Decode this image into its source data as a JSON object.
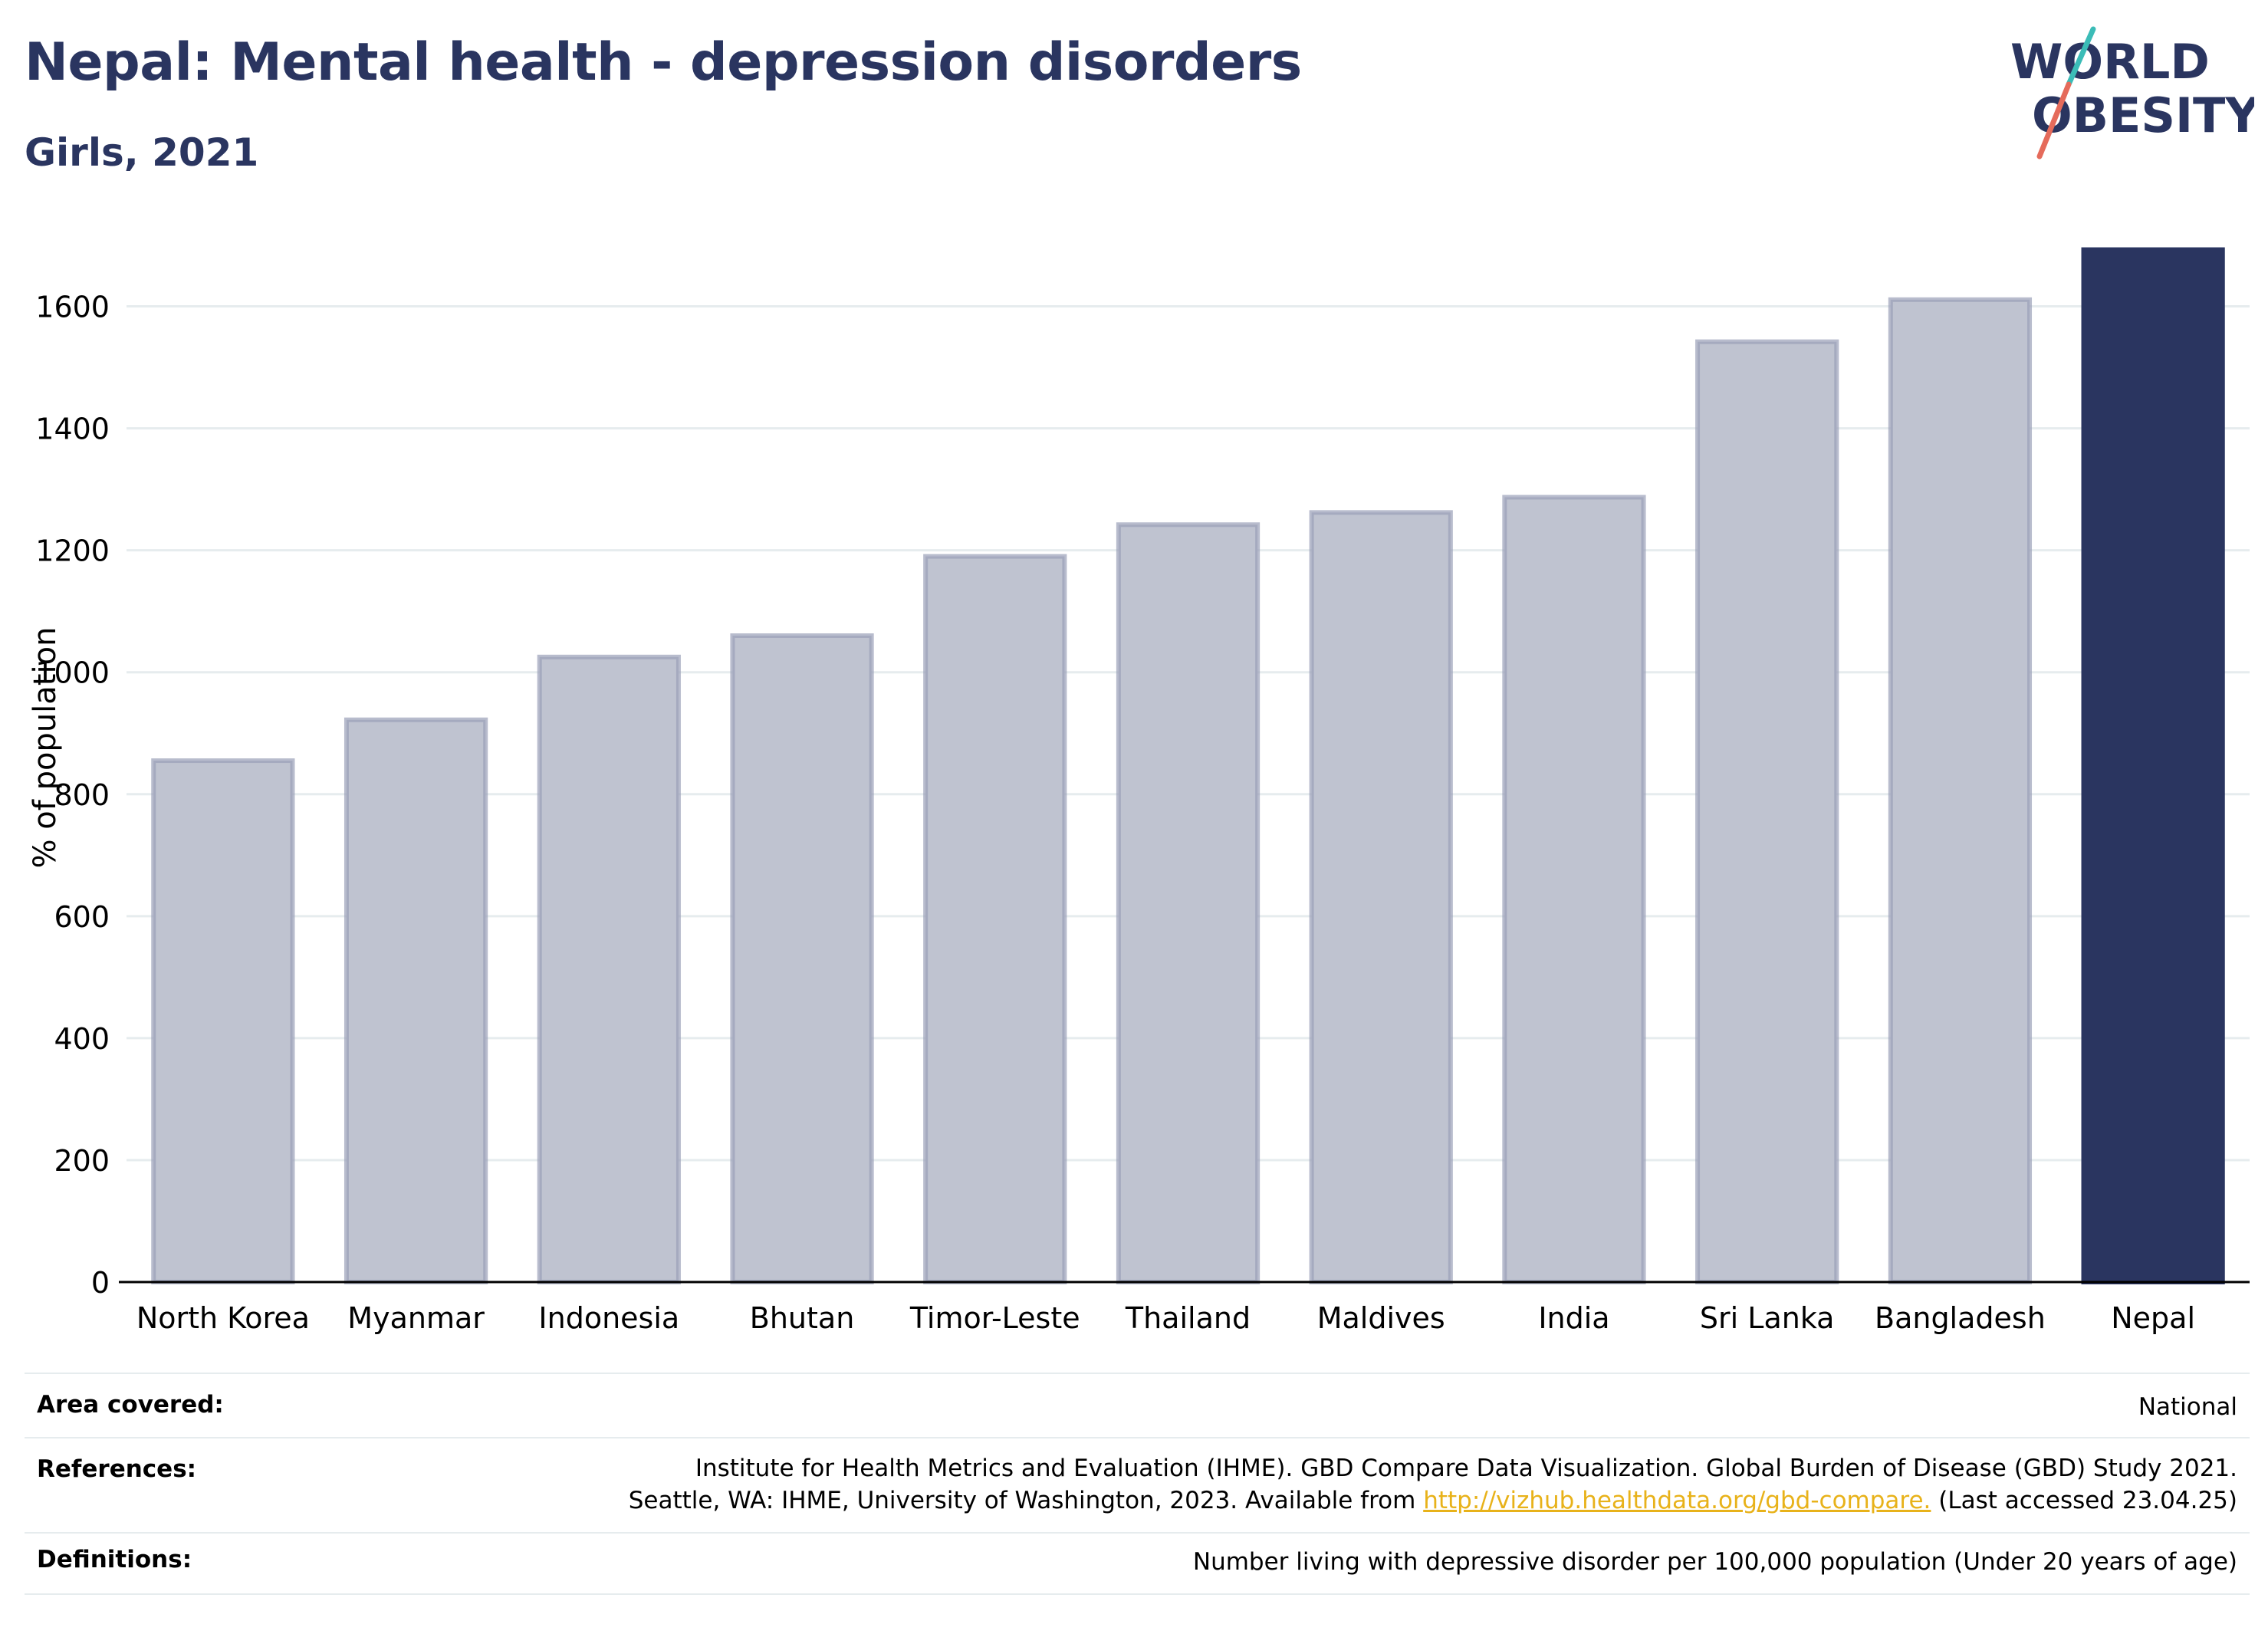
{
  "header": {
    "title": "Nepal: Mental health - depression disorders",
    "subtitle": "Girls, 2021"
  },
  "logo": {
    "line1": "WORLD",
    "line2": "OBESITY",
    "colors": {
      "text": "#2a3560",
      "slash_top": "#3bbcb7",
      "slash_bottom": "#e56b5b"
    }
  },
  "chart_data": {
    "type": "bar",
    "categories": [
      "North Korea",
      "Myanmar",
      "Indonesia",
      "Bhutan",
      "Timor-Leste",
      "Thailand",
      "Maldives",
      "India",
      "Sri Lanka",
      "Bangladesh",
      "Nepal"
    ],
    "values": [
      855,
      922,
      1025,
      1060,
      1190,
      1242,
      1262,
      1287,
      1542,
      1611,
      1693
    ],
    "highlight": "Nepal",
    "ylabel": "% of population",
    "xlabel": "",
    "ylim": [
      0,
      1700
    ],
    "yticks": [
      0,
      200,
      400,
      600,
      800,
      1000,
      1200,
      1400,
      1600
    ],
    "grid": true,
    "colors": {
      "bar": "#bfc3d0",
      "bar_border": "#9a9fb8",
      "highlight": "#2a3560",
      "grid": "#e6ecee",
      "axis": "#000000"
    }
  },
  "metadata": {
    "area_label": "Area covered:",
    "area_value": "National",
    "references_label": "References:",
    "references_line1": "Institute for Health Metrics and Evaluation (IHME). GBD Compare Data Visualization. Global Burden of Disease (GBD) Study 2021.",
    "references_line2_pre": "Seattle, WA: IHME, University of Washington, 2023. Available from ",
    "references_link": "http://vizhub.healthdata.org/gbd-compare.",
    "references_line2_post": " (Last accessed 23.04.25)",
    "definitions_label": "Definitions:",
    "definitions_value": "Number living with depressive disorder per 100,000 population (Under 20 years of age)"
  }
}
